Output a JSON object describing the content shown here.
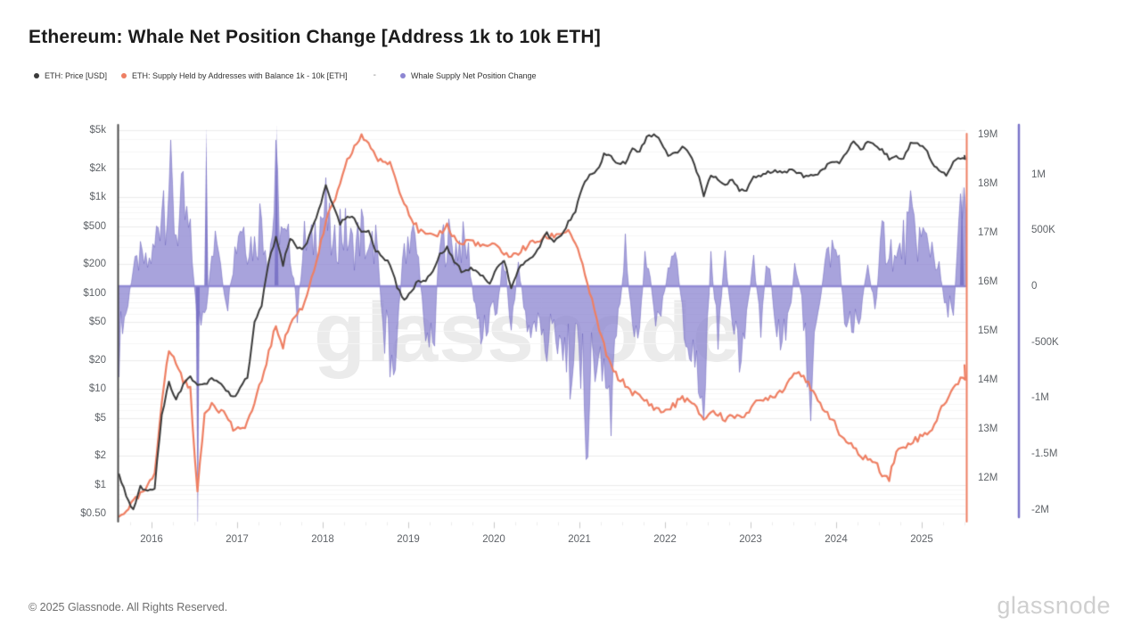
{
  "page": {
    "title": "Ethereum: Whale Net Position Change [Address 1k to 10k ETH]"
  },
  "legend": {
    "separator": "-",
    "items": [
      {
        "label": "ETH: Price [USD]",
        "color": "#3b3b3b"
      },
      {
        "label": "ETH: Supply Held by Addresses with Balance 1k - 10k [ETH]",
        "color": "#ee7f63"
      },
      {
        "label": "Whale Supply Net Position Change",
        "color": "#8d86d2"
      }
    ]
  },
  "watermark": "glassnode",
  "footer": {
    "copyright": "© 2025 Glassnode. All Rights Reserved.",
    "logo": "glassnode"
  },
  "chart_data": {
    "type": "mixed",
    "title": "Ethereum: Whale Net Position Change [Address 1k to 10k ETH]",
    "grid": true,
    "legend_position": "top-left",
    "x_axis": {
      "start_decimal_year": 2015.62,
      "end_decimal_year": 2025.5,
      "step_months": 1,
      "year_ticks": [
        2016,
        2017,
        2018,
        2019,
        2020,
        2021,
        2022,
        2023,
        2024,
        2025
      ]
    },
    "y_axes": {
      "price_usd_log": {
        "side": "left",
        "scale": "log",
        "range": [
          0.41,
          5560
        ],
        "ticks": [
          {
            "v": 5000,
            "label": "$5k"
          },
          {
            "v": 2000,
            "label": "$2k"
          },
          {
            "v": 1000,
            "label": "$1k"
          },
          {
            "v": 500,
            "label": "$500"
          },
          {
            "v": 200,
            "label": "$200"
          },
          {
            "v": 100,
            "label": "$100"
          },
          {
            "v": 50,
            "label": "$50"
          },
          {
            "v": 20,
            "label": "$20"
          },
          {
            "v": 10,
            "label": "$10"
          },
          {
            "v": 5,
            "label": "$5"
          },
          {
            "v": 2,
            "label": "$2"
          },
          {
            "v": 1,
            "label": "$1"
          },
          {
            "v": 0.5,
            "label": "$0.50"
          }
        ]
      },
      "supply_millions": {
        "side": "right",
        "scale": "linear",
        "range": [
          11.1,
          19.2
        ],
        "ticks": [
          {
            "v": 19,
            "label": "19M"
          },
          {
            "v": 18,
            "label": "18M"
          },
          {
            "v": 17,
            "label": "17M"
          },
          {
            "v": 16,
            "label": "16M"
          },
          {
            "v": 15,
            "label": "15M"
          },
          {
            "v": 14,
            "label": "14M"
          },
          {
            "v": 13,
            "label": "13M"
          },
          {
            "v": 12,
            "label": "12M"
          }
        ]
      },
      "net_change_millions": {
        "side": "far-right",
        "scale": "linear",
        "range": [
          -2.15,
          1.45
        ],
        "ticks": [
          {
            "v": 1,
            "label": "1M"
          },
          {
            "v": 0.5,
            "label": "500K"
          },
          {
            "v": 0,
            "label": "0"
          },
          {
            "v": -0.5,
            "label": "-500K"
          },
          {
            "v": -1,
            "label": "-1M"
          },
          {
            "v": -1.5,
            "label": "-1.5M"
          },
          {
            "v": -2,
            "label": "-2M"
          }
        ]
      }
    },
    "series": [
      {
        "name": "ETH: Price [USD]",
        "type": "line",
        "axis": "price_usd_log",
        "color": "#3b3b3b",
        "monthly_values_usd": [
          1.3,
          0.75,
          0.55,
          0.95,
          0.88,
          0.95,
          5.5,
          11.5,
          8,
          11,
          13.5,
          11,
          11.2,
          13,
          12,
          9.8,
          8,
          10.5,
          13,
          48,
          75,
          220,
          370,
          200,
          380,
          290,
          300,
          440,
          720,
          1300,
          850,
          520,
          650,
          580,
          450,
          430,
          280,
          230,
          200,
          115,
          85,
          106,
          135,
          137,
          165,
          255,
          300,
          215,
          170,
          180,
          180,
          150,
          130,
          180,
          225,
          115,
          175,
          215,
          230,
          310,
          420,
          355,
          385,
          550,
          730,
          1300,
          1650,
          1850,
          2750,
          2650,
          2150,
          2300,
          3200,
          3000,
          4150,
          4600,
          3700,
          2650,
          2900,
          3300,
          2800,
          1900,
          1050,
          1700,
          1550,
          1330,
          1550,
          1200,
          1200,
          1600,
          1640,
          1800,
          1900,
          1860,
          1900,
          1860,
          1650,
          1660,
          1800,
          2050,
          2300,
          2300,
          3000,
          3900,
          3100,
          3800,
          3400,
          3200,
          2500,
          2600,
          2500,
          3600,
          3700,
          3300,
          2300,
          1900,
          1700,
          2400,
          2600
        ],
        "end_value_usd": 2700
      },
      {
        "name": "ETH: Supply Held by Addresses with Balance 1k - 10k [ETH]",
        "type": "line",
        "axis": "supply_millions",
        "color": "#ee7f63",
        "monthly_values_m": [
          11.2,
          11.35,
          11.5,
          11.65,
          11.8,
          12.1,
          13.6,
          14.6,
          14.35,
          14.0,
          13.8,
          11.7,
          13.3,
          13.55,
          13.4,
          13.3,
          13.0,
          12.95,
          13.15,
          13.5,
          14.0,
          14.55,
          15.1,
          14.7,
          15.15,
          15.35,
          15.55,
          16.1,
          16.6,
          17.2,
          17.6,
          17.95,
          18.45,
          18.75,
          18.95,
          18.85,
          18.55,
          18.4,
          18.45,
          18.0,
          17.65,
          17.3,
          17.05,
          16.95,
          16.9,
          17.0,
          17.15,
          16.9,
          16.75,
          16.85,
          16.8,
          16.7,
          16.75,
          16.7,
          16.6,
          16.5,
          16.6,
          16.7,
          16.8,
          16.85,
          16.9,
          16.95,
          17.0,
          17.05,
          16.8,
          16.3,
          15.8,
          15.2,
          14.7,
          14.25,
          14.05,
          13.9,
          13.75,
          13.65,
          13.55,
          13.45,
          13.35,
          13.4,
          13.5,
          13.65,
          13.55,
          13.4,
          13.2,
          13.35,
          13.3,
          13.2,
          13.3,
          13.2,
          13.35,
          13.5,
          13.55,
          13.65,
          13.7,
          13.8,
          14.0,
          14.2,
          14.1,
          13.8,
          13.55,
          13.4,
          13.2,
          12.9,
          12.75,
          12.6,
          12.45,
          12.4,
          12.3,
          12.1,
          12.0,
          12.55,
          12.6,
          12.75,
          12.8,
          12.9,
          13.0,
          13.3,
          13.6,
          13.8,
          14.05
        ],
        "end_value_m": 14.3
      },
      {
        "name": "Whale Supply Net Position Change",
        "type": "area",
        "axis": "net_change_millions",
        "color": "#8d86d2",
        "monthly_values_m": [
          -0.75,
          -0.35,
          0.2,
          0.35,
          0.25,
          0.45,
          1.15,
          1.3,
          0.7,
          0.95,
          0.55,
          -0.35,
          -0.6,
          0.35,
          0.6,
          -0.4,
          0.3,
          0.85,
          0.6,
          0.5,
          0.9,
          0.3,
          1.2,
          0.55,
          0.5,
          -0.3,
          0.55,
          0.5,
          0.85,
          0.9,
          0.4,
          0.75,
          0.6,
          0.45,
          0.7,
          0.35,
          0.6,
          -0.45,
          -0.9,
          -0.6,
          0.5,
          0.7,
          0.3,
          -0.5,
          -0.8,
          0.5,
          0.6,
          0.45,
          0.55,
          0.4,
          -0.35,
          -0.55,
          -0.3,
          -0.25,
          0.35,
          -0.55,
          0.3,
          -0.35,
          -0.55,
          -0.45,
          -0.75,
          -0.5,
          -0.6,
          -1.0,
          -0.55,
          -1.3,
          -1.45,
          -0.9,
          -1.2,
          -1.35,
          -0.5,
          0.45,
          -0.55,
          -0.4,
          0.5,
          -0.35,
          -0.3,
          0.15,
          0.5,
          -0.4,
          -0.6,
          -1.0,
          -1.2,
          0.3,
          -0.5,
          0.35,
          -0.45,
          -0.9,
          -0.35,
          0.3,
          -0.45,
          0.4,
          -0.35,
          -0.6,
          -0.3,
          0.35,
          -0.4,
          -1.2,
          -0.5,
          0.3,
          0.45,
          0.35,
          -0.55,
          -0.4,
          -0.3,
          0.3,
          -0.35,
          0.6,
          0.5,
          0.3,
          0.55,
          0.75,
          0.6,
          0.55,
          0.5,
          0.2,
          -0.25,
          -0.3,
          0.85
        ],
        "event_spikes": [
          {
            "t": 2016.54,
            "v": -2.35
          },
          {
            "t": 2016.64,
            "v": 1.42
          },
          {
            "t": 2017.46,
            "v": 1.44
          },
          {
            "t": 2025.47,
            "v": 0.9
          }
        ]
      }
    ]
  }
}
